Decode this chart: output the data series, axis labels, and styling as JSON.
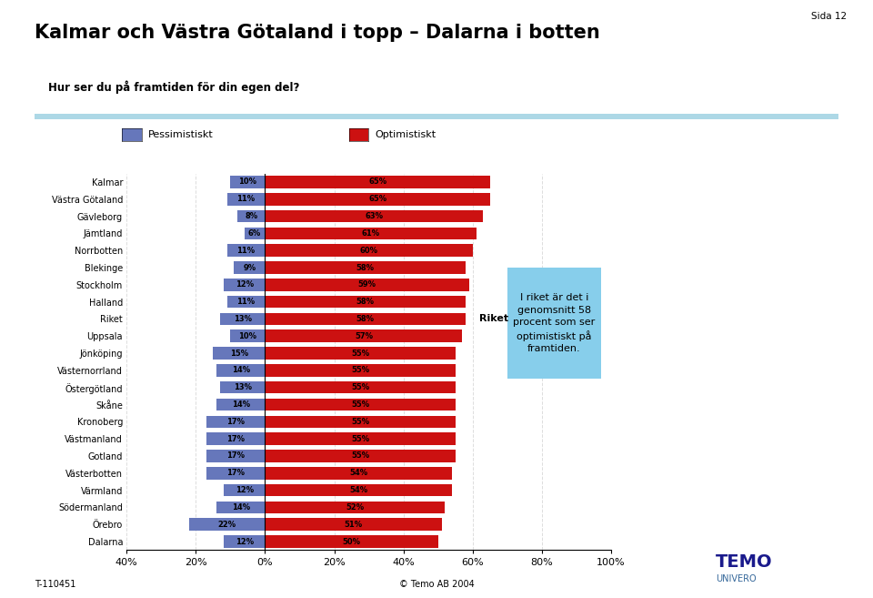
{
  "title": "Kalmar och Västra Götaland i topp – Dalarna i botten",
  "subtitle": "Hur ser du på framtiden för din egen del?",
  "sida": "Sida 12",
  "categories": [
    "Kalmar",
    "Västra Götaland",
    "Gävleborg",
    "Jämtland",
    "Norrbotten",
    "Blekinge",
    "Stockholm",
    "Halland",
    "Riket",
    "Uppsala",
    "Jönköping",
    "Västernorrland",
    "Östergötland",
    "Skåne",
    "Kronoberg",
    "Västmanland",
    "Gotland",
    "Västerbotten",
    "Värmland",
    "Södermanland",
    "Örebro",
    "Dalarna"
  ],
  "pessimistic": [
    10,
    11,
    8,
    6,
    11,
    9,
    12,
    11,
    13,
    10,
    15,
    14,
    13,
    14,
    17,
    17,
    17,
    17,
    12,
    14,
    22,
    12
  ],
  "optimistic": [
    65,
    65,
    63,
    61,
    60,
    58,
    59,
    58,
    58,
    57,
    55,
    55,
    55,
    55,
    55,
    55,
    55,
    54,
    54,
    52,
    51,
    50
  ],
  "pessimistic_color": "#6677bb",
  "optimistic_color": "#cc1111",
  "bar_height": 0.72,
  "xlim_left": -40,
  "xlim_right": 100,
  "legend_pessimistic": "Pessimistiskt",
  "legend_optimistic": "Optimistiskt",
  "riket_label": "Riket",
  "annotation_text": "I riket är det i\ngenomsnitt 58\nprocent som ser\noptimistiskt på\nframtiden.",
  "annotation_box_color": "#87ceeb",
  "xlabel_ticks": [
    -40,
    -20,
    0,
    20,
    40,
    60,
    80,
    100
  ],
  "xlabel_labels": [
    "40%",
    "20%",
    "0%",
    "20%",
    "40%",
    "60%",
    "80%",
    "100%"
  ],
  "footer_left": "T-110451",
  "footer_center": "© Temo AB 2004",
  "background_color": "#ffffff",
  "chart_bg_color": "#ffffff",
  "title_color": "#000000",
  "subtitle_color": "#000000",
  "bar_text_color": "#000000",
  "top_line_color": "#add8e6",
  "grid_color": "#dddddd",
  "temo_color": "#1a1a8c"
}
